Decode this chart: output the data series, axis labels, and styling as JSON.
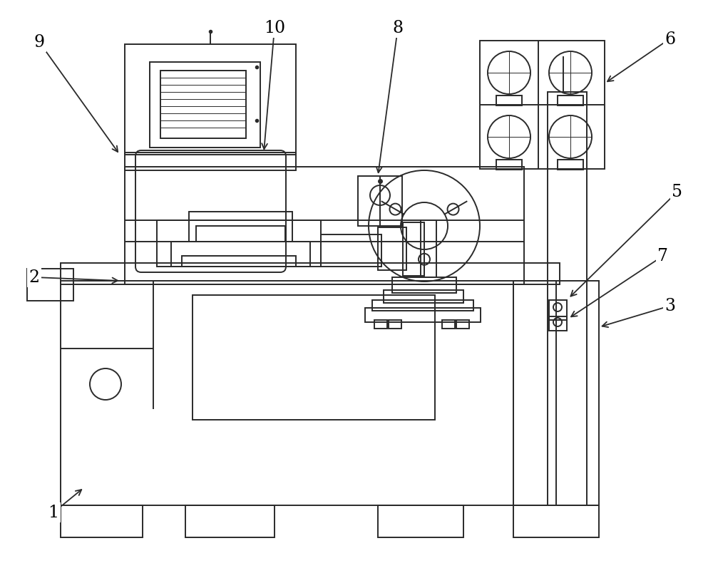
{
  "bg": "#ffffff",
  "lc": "#2a2a2a",
  "lw": 1.4,
  "lw_thin": 0.7,
  "figsize": [
    10.0,
    8.12
  ],
  "dpi": 100,
  "annotations": [
    [
      "9",
      [
        0.055,
        0.93
      ],
      [
        0.175,
        0.735
      ]
    ],
    [
      "10",
      [
        0.385,
        0.955
      ],
      [
        0.385,
        0.72
      ]
    ],
    [
      "8",
      [
        0.56,
        0.955
      ],
      [
        0.525,
        0.62
      ]
    ],
    [
      "6",
      [
        0.93,
        0.94
      ],
      [
        0.81,
        0.875
      ]
    ],
    [
      "5",
      [
        0.94,
        0.62
      ],
      [
        0.8,
        0.558
      ]
    ],
    [
      "7",
      [
        0.91,
        0.505
      ],
      [
        0.8,
        0.53
      ]
    ],
    [
      "3",
      [
        0.94,
        0.415
      ],
      [
        0.84,
        0.44
      ]
    ],
    [
      "2",
      [
        0.055,
        0.53
      ],
      [
        0.175,
        0.52
      ]
    ],
    [
      "1",
      [
        0.08,
        0.13
      ],
      [
        0.125,
        0.195
      ]
    ]
  ]
}
